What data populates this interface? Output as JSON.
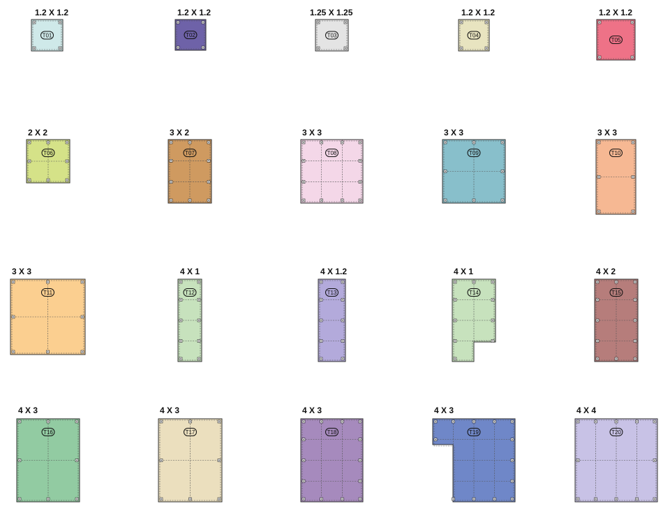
{
  "tiles": [
    {
      "id": "T01",
      "size": "1.2 X 1.2",
      "color": "#cfe9e9"
    },
    {
      "id": "T02",
      "size": "1.2 X 1.2",
      "color": "#6e62a8"
    },
    {
      "id": "T03",
      "size": "1.25 X 1.25",
      "color": "#e4e4e4"
    },
    {
      "id": "T04",
      "size": "1.2 X 1.2",
      "color": "#e8e4c0"
    },
    {
      "id": "T05",
      "size": "1.2 X 1.2",
      "color": "#ee7287"
    },
    {
      "id": "T06",
      "size": "2 X 2",
      "color": "#d5e288"
    },
    {
      "id": "T07",
      "size": "3 X 2",
      "color": "#cf9a60"
    },
    {
      "id": "T08",
      "size": "3 X 3",
      "color": "#f4d7e8"
    },
    {
      "id": "T09",
      "size": "3 X 3",
      "color": "#88bfcb"
    },
    {
      "id": "T10",
      "size": "3 X 3",
      "color": "#f6b893"
    },
    {
      "id": "T11",
      "size": "3 X 3",
      "color": "#fbcf90"
    },
    {
      "id": "T12",
      "size": "4 X 1",
      "color": "#c7e2bd"
    },
    {
      "id": "T13",
      "size": "4 X 1.2",
      "color": "#b3aadb"
    },
    {
      "id": "T14",
      "size": "4 X 1",
      "color": "#c7e2bd"
    },
    {
      "id": "T15",
      "size": "4 X 2",
      "color": "#b67d7b"
    },
    {
      "id": "T16",
      "size": "4 X 3",
      "color": "#92cba2"
    },
    {
      "id": "T17",
      "size": "4 X 3",
      "color": "#ebdfbe"
    },
    {
      "id": "T18",
      "size": "4 X 3",
      "color": "#a68abd"
    },
    {
      "id": "T19",
      "size": "4 X 3",
      "color": "#6f87c8"
    },
    {
      "id": "T20",
      "size": "4 X 4",
      "color": "#c8c2e6"
    }
  ]
}
